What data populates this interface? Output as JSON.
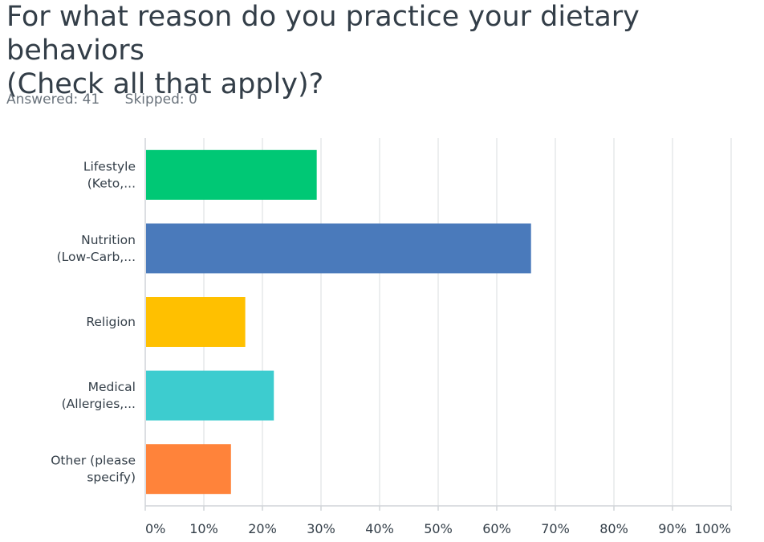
{
  "question": {
    "title": "For what reason do you practice your dietary behaviors\n(Check all that apply)?"
  },
  "stats": {
    "answered": "Answered: 41",
    "skipped": "Skipped: 0"
  },
  "chart_data": {
    "type": "bar",
    "orientation": "horizontal",
    "title": "For what reason do you practice your dietary behaviors (Check all that apply)?",
    "categories": [
      [
        "Lifestyle",
        "(Keto,..."
      ],
      [
        "Nutrition",
        "(Low-Carb,..."
      ],
      [
        "Religion"
      ],
      [
        "Medical",
        "(Allergies,..."
      ],
      [
        "Other (please",
        "specify)"
      ]
    ],
    "values": [
      29.27,
      65.85,
      17.07,
      21.95,
      14.63
    ],
    "colors": [
      "#00c875",
      "#4a7abb",
      "#ffc000",
      "#3dcccf",
      "#ff833a"
    ],
    "xlim": [
      0,
      100
    ],
    "xticks": [
      "0%",
      "10%",
      "20%",
      "30%",
      "40%",
      "50%",
      "60%",
      "70%",
      "80%",
      "90%",
      "100%"
    ],
    "grid": true,
    "xlabel": "",
    "ylabel": ""
  }
}
